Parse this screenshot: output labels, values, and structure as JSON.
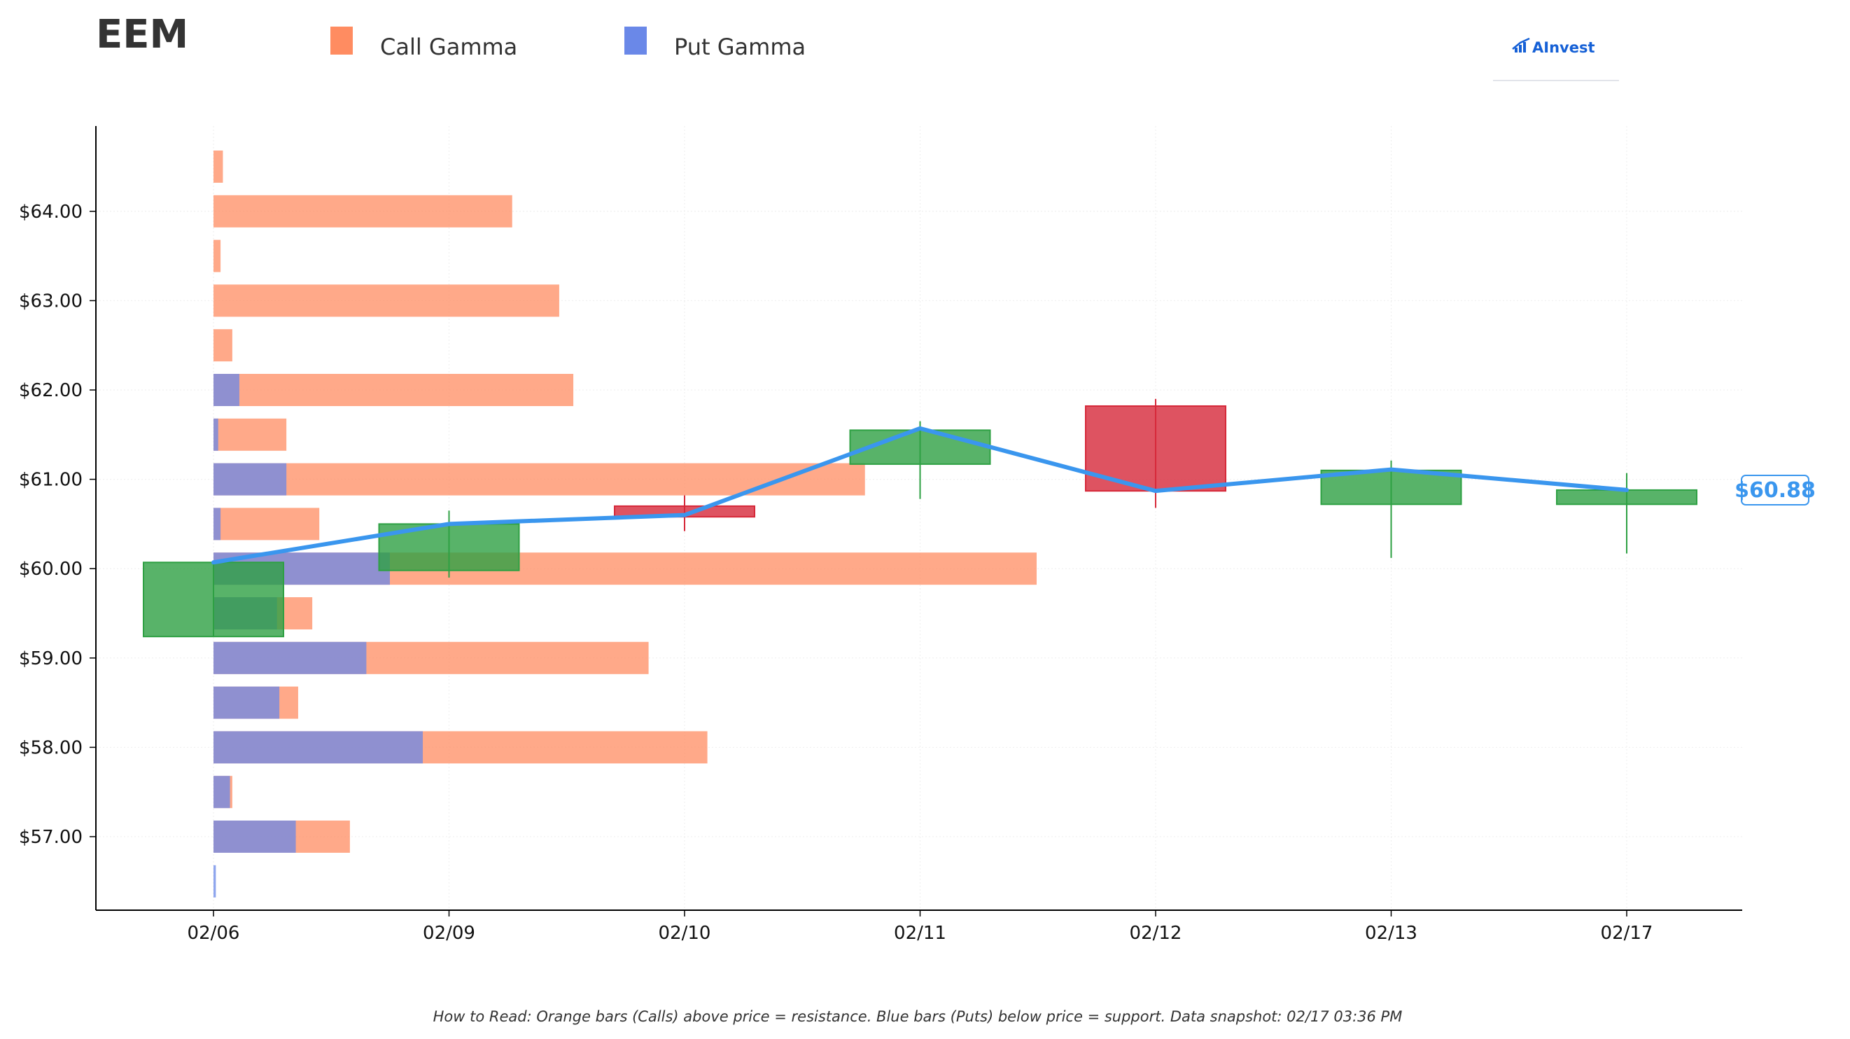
{
  "title": "EEM",
  "legend": [
    {
      "label": "Call Gamma",
      "color": "#FF8C61"
    },
    {
      "label": "Put Gamma",
      "color": "#6A88E8"
    }
  ],
  "logo_text": "AInvest",
  "footnote": "How to Read: Orange bars (Calls) above price = resistance. Blue bars (Puts) below price = support. Data snapshot: 02/17 03:36 PM",
  "price_label": "$60.88",
  "colors": {
    "call": "#FF8C61",
    "put": "#6A88E8",
    "up": "#2EA043",
    "down": "#D62839",
    "line": "#3A96EE",
    "logo": "#1560D6"
  },
  "chart_data": {
    "type": "candlestick",
    "dates": [
      "02/06",
      "02/09",
      "02/10",
      "02/11",
      "02/12",
      "02/13",
      "02/17"
    ],
    "ylim": [
      56.25,
      65.0
    ],
    "y_ticks": [
      "$57.00",
      "$58.00",
      "$59.00",
      "$60.00",
      "$61.00",
      "$62.00",
      "$63.00",
      "$64.00"
    ],
    "y_tick_values": [
      57,
      58,
      59,
      60,
      61,
      62,
      63,
      64
    ],
    "grid": true,
    "legend_position": "top",
    "candles": [
      {
        "date": "02/06",
        "open": 59.24,
        "high": 60.07,
        "low": 59.24,
        "close": 60.07
      },
      {
        "date": "02/09",
        "open": 59.98,
        "high": 60.65,
        "low": 59.9,
        "close": 60.5
      },
      {
        "date": "02/10",
        "open": 60.7,
        "high": 60.82,
        "low": 60.42,
        "close": 60.58
      },
      {
        "date": "02/11",
        "open": 61.17,
        "high": 61.65,
        "low": 60.78,
        "close": 61.55
      },
      {
        "date": "02/12",
        "open": 61.82,
        "high": 61.9,
        "low": 60.68,
        "close": 60.87
      },
      {
        "date": "02/13",
        "open": 60.72,
        "high": 61.21,
        "low": 60.12,
        "close": 61.1
      },
      {
        "date": "02/17",
        "open": 60.72,
        "high": 61.07,
        "low": 60.17,
        "close": 60.88
      }
    ],
    "price_line": [
      60.07,
      60.5,
      60.6,
      61.57,
      60.87,
      61.11,
      60.88
    ],
    "gamma_strikes": [
      56.5,
      57,
      57.5,
      58,
      58.5,
      59,
      59.5,
      60,
      60.5,
      61,
      61.5,
      62,
      62.5,
      63,
      63.5,
      64,
      64.5
    ],
    "call_gamma": [
      0.0,
      0.58,
      0.08,
      2.1,
      0.36,
      1.85,
      0.42,
      3.5,
      0.45,
      2.77,
      0.31,
      1.53,
      0.08,
      1.47,
      0.03,
      1.27,
      0.04
    ],
    "put_gamma": [
      0.01,
      0.35,
      0.07,
      0.89,
      0.28,
      0.65,
      0.27,
      0.75,
      0.03,
      0.31,
      0.02,
      0.11,
      0.0,
      0.0,
      0.0,
      0.0,
      0.0
    ],
    "gamma_scale_max": 3.5
  }
}
